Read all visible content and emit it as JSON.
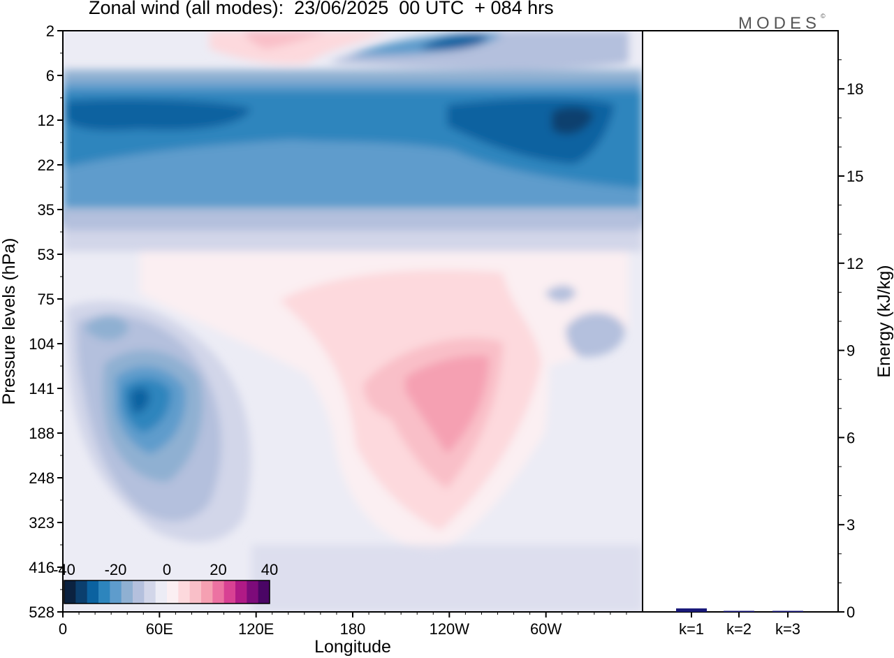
{
  "header": {
    "title": "Zonal wind (all modes):  23/06/2025  00 UTC  + 084 hrs",
    "brand": "MODES",
    "brand_mark": "©"
  },
  "chart_data": [
    {
      "type": "heatmap",
      "title": "Zonal wind (all modes):  23/06/2025  00 UTC  + 084 hrs",
      "xlabel": "Longitude",
      "ylabel": "Pressure levels (hPa)",
      "x_ticks": [
        "0",
        "60E",
        "120E",
        "180",
        "120W",
        "60W"
      ],
      "y_ticks": [
        "2",
        "6",
        "12",
        "22",
        "35",
        "53",
        "75",
        "104",
        "141",
        "188",
        "248",
        "323",
        "416",
        "528"
      ],
      "y_scale": "log",
      "colorbar": {
        "ticks": [
          "-40",
          "-20",
          "0",
          "20",
          "40"
        ],
        "range": [
          -40,
          40
        ],
        "placement": "bottom-left",
        "colors": [
          "#0b2240",
          "#0b3f6e",
          "#0b62a0",
          "#2d85bd",
          "#5e9ccc",
          "#8fb0d2",
          "#b4c0dd",
          "#d2d6e9",
          "#ececf5",
          "#fbeff2",
          "#fdd9dd",
          "#f9bfc8",
          "#f5a0b2",
          "#ec72a2",
          "#d84193",
          "#b01a86",
          "#7d0b7a",
          "#4a0565"
        ]
      },
      "fields": {
        "upper_strat_easterly_peak": -35,
        "upper_left_westerly_peak": 12,
        "lower_strat_easterly_band_max": -28,
        "mid_level_westerly_max": 18,
        "low_level_easterly_max_60E": -33,
        "background_weak_easterly": -5
      },
      "grid": false
    },
    {
      "type": "bar",
      "ylabel": "Energy (kJ/kg)",
      "categories": [
        "k=1",
        "k=2",
        "k=3"
      ],
      "values": [
        0.12,
        0.03,
        0.02
      ],
      "ylim": [
        0,
        20
      ],
      "y_ticks": [
        "0",
        "3",
        "6",
        "9",
        "12",
        "15",
        "18"
      ],
      "y_tick_side": "right",
      "bar_color": "#1a1a7a"
    }
  ]
}
